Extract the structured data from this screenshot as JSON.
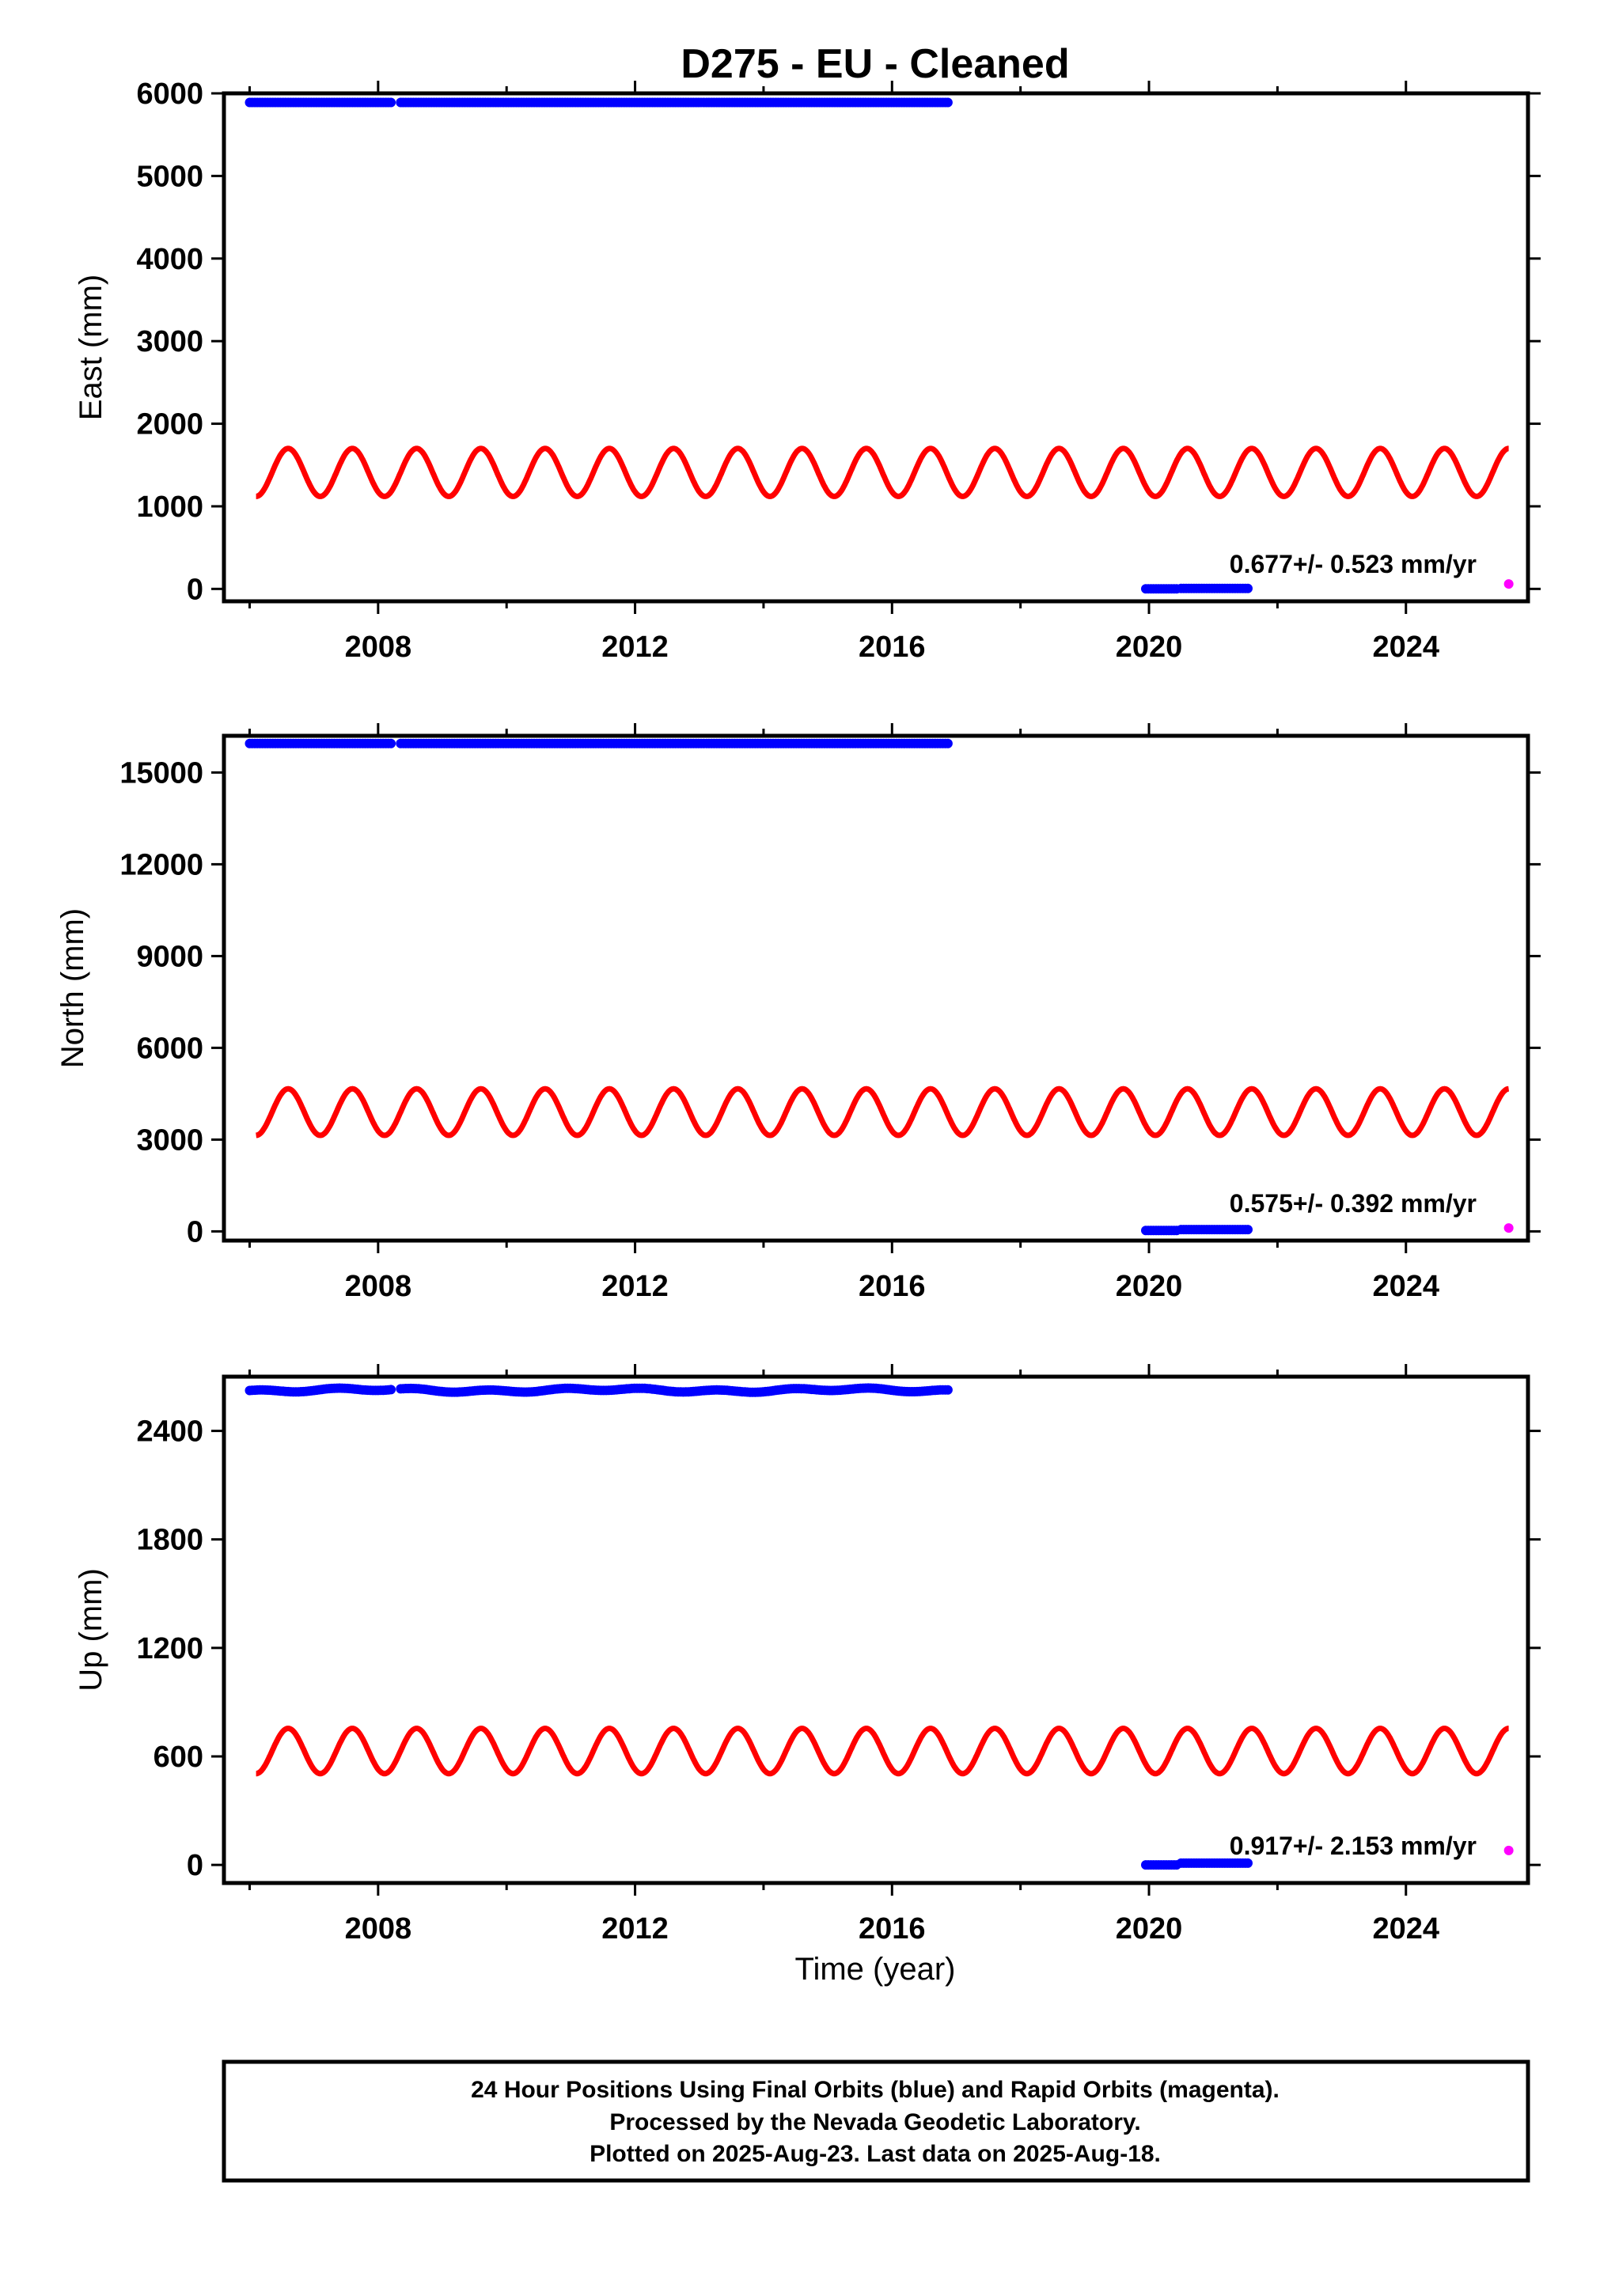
{
  "chart_data": {
    "title": "D275  - EU - Cleaned",
    "type": "scatter",
    "xlabel": "Time (year)",
    "xlim": [
      2005.6,
      2025.9
    ],
    "xticks": [
      2008,
      2012,
      2016,
      2020,
      2024
    ],
    "colors": {
      "final": "#0000ff",
      "rapid": "#ff00ff",
      "model": "#ff0000"
    },
    "panels": [
      {
        "name": "east",
        "ylabel": "East (mm)",
        "ylim": [
          -150,
          6000
        ],
        "yticks": [
          0,
          1000,
          2000,
          3000,
          4000,
          5000,
          6000
        ],
        "rate_text": "0.677+/- 0.523 mm/yr",
        "model_sine": {
          "x_start": 2006.1,
          "x_end": 2025.6,
          "center": 1410,
          "amplitude": 290,
          "period": 1.0,
          "peak_year_fraction": 0.6
        },
        "series": [
          {
            "name": "final",
            "x_start": 2006.0,
            "x_end": 2008.2,
            "y": 5890
          },
          {
            "name": "final",
            "x_start": 2008.35,
            "x_end": 2016.9,
            "y": 5890
          },
          {
            "name": "final",
            "x_start": 2019.95,
            "x_end": 2020.45,
            "y": 0
          },
          {
            "name": "final",
            "x_start": 2020.5,
            "x_end": 2021.55,
            "y": 5
          },
          {
            "name": "rapid",
            "x": [
              2025.6
            ],
            "y": [
              60
            ]
          }
        ]
      },
      {
        "name": "north",
        "ylabel": "North (mm)",
        "ylim": [
          -300,
          16200
        ],
        "yticks": [
          0,
          3000,
          6000,
          9000,
          12000,
          15000
        ],
        "rate_text": "0.575+/- 0.392 mm/yr",
        "model_sine": {
          "x_start": 2006.1,
          "x_end": 2025.6,
          "center": 3900,
          "amplitude": 760,
          "period": 1.0,
          "peak_year_fraction": 0.6
        },
        "series": [
          {
            "name": "final",
            "x_start": 2006.0,
            "x_end": 2008.2,
            "y": 15950
          },
          {
            "name": "final",
            "x_start": 2008.35,
            "x_end": 2016.9,
            "y": 15950
          },
          {
            "name": "final",
            "x_start": 2019.95,
            "x_end": 2020.45,
            "y": 30
          },
          {
            "name": "final",
            "x_start": 2020.5,
            "x_end": 2021.55,
            "y": 60
          },
          {
            "name": "rapid",
            "x": [
              2025.6
            ],
            "y": [
              110
            ]
          }
        ]
      },
      {
        "name": "up",
        "ylabel": "Up (mm)",
        "ylim": [
          -100,
          2700
        ],
        "yticks": [
          0,
          600,
          1200,
          1800,
          2400
        ],
        "rate_text": "0.917+/- 2.153 mm/yr",
        "model_sine": {
          "x_start": 2006.1,
          "x_end": 2025.6,
          "center": 630,
          "amplitude": 125,
          "period": 1.0,
          "peak_year_fraction": 0.6
        },
        "series": [
          {
            "name": "final",
            "x_start": 2006.0,
            "x_end": 2008.2,
            "y": 2625
          },
          {
            "name": "final",
            "x_start": 2008.35,
            "x_end": 2016.9,
            "y": 2625
          },
          {
            "name": "final",
            "x_start": 2019.95,
            "x_end": 2020.45,
            "y": 0
          },
          {
            "name": "final",
            "x_start": 2020.5,
            "x_end": 2021.55,
            "y": 10
          },
          {
            "name": "rapid",
            "x": [
              2025.6
            ],
            "y": [
              80
            ]
          }
        ]
      }
    ]
  },
  "footer": {
    "line1": "24 Hour Positions Using Final Orbits (blue) and Rapid Orbits (magenta).",
    "line2": "Processed by the Nevada Geodetic Laboratory.",
    "line3": "Plotted on 2025-Aug-23. Last data on 2025-Aug-18."
  }
}
